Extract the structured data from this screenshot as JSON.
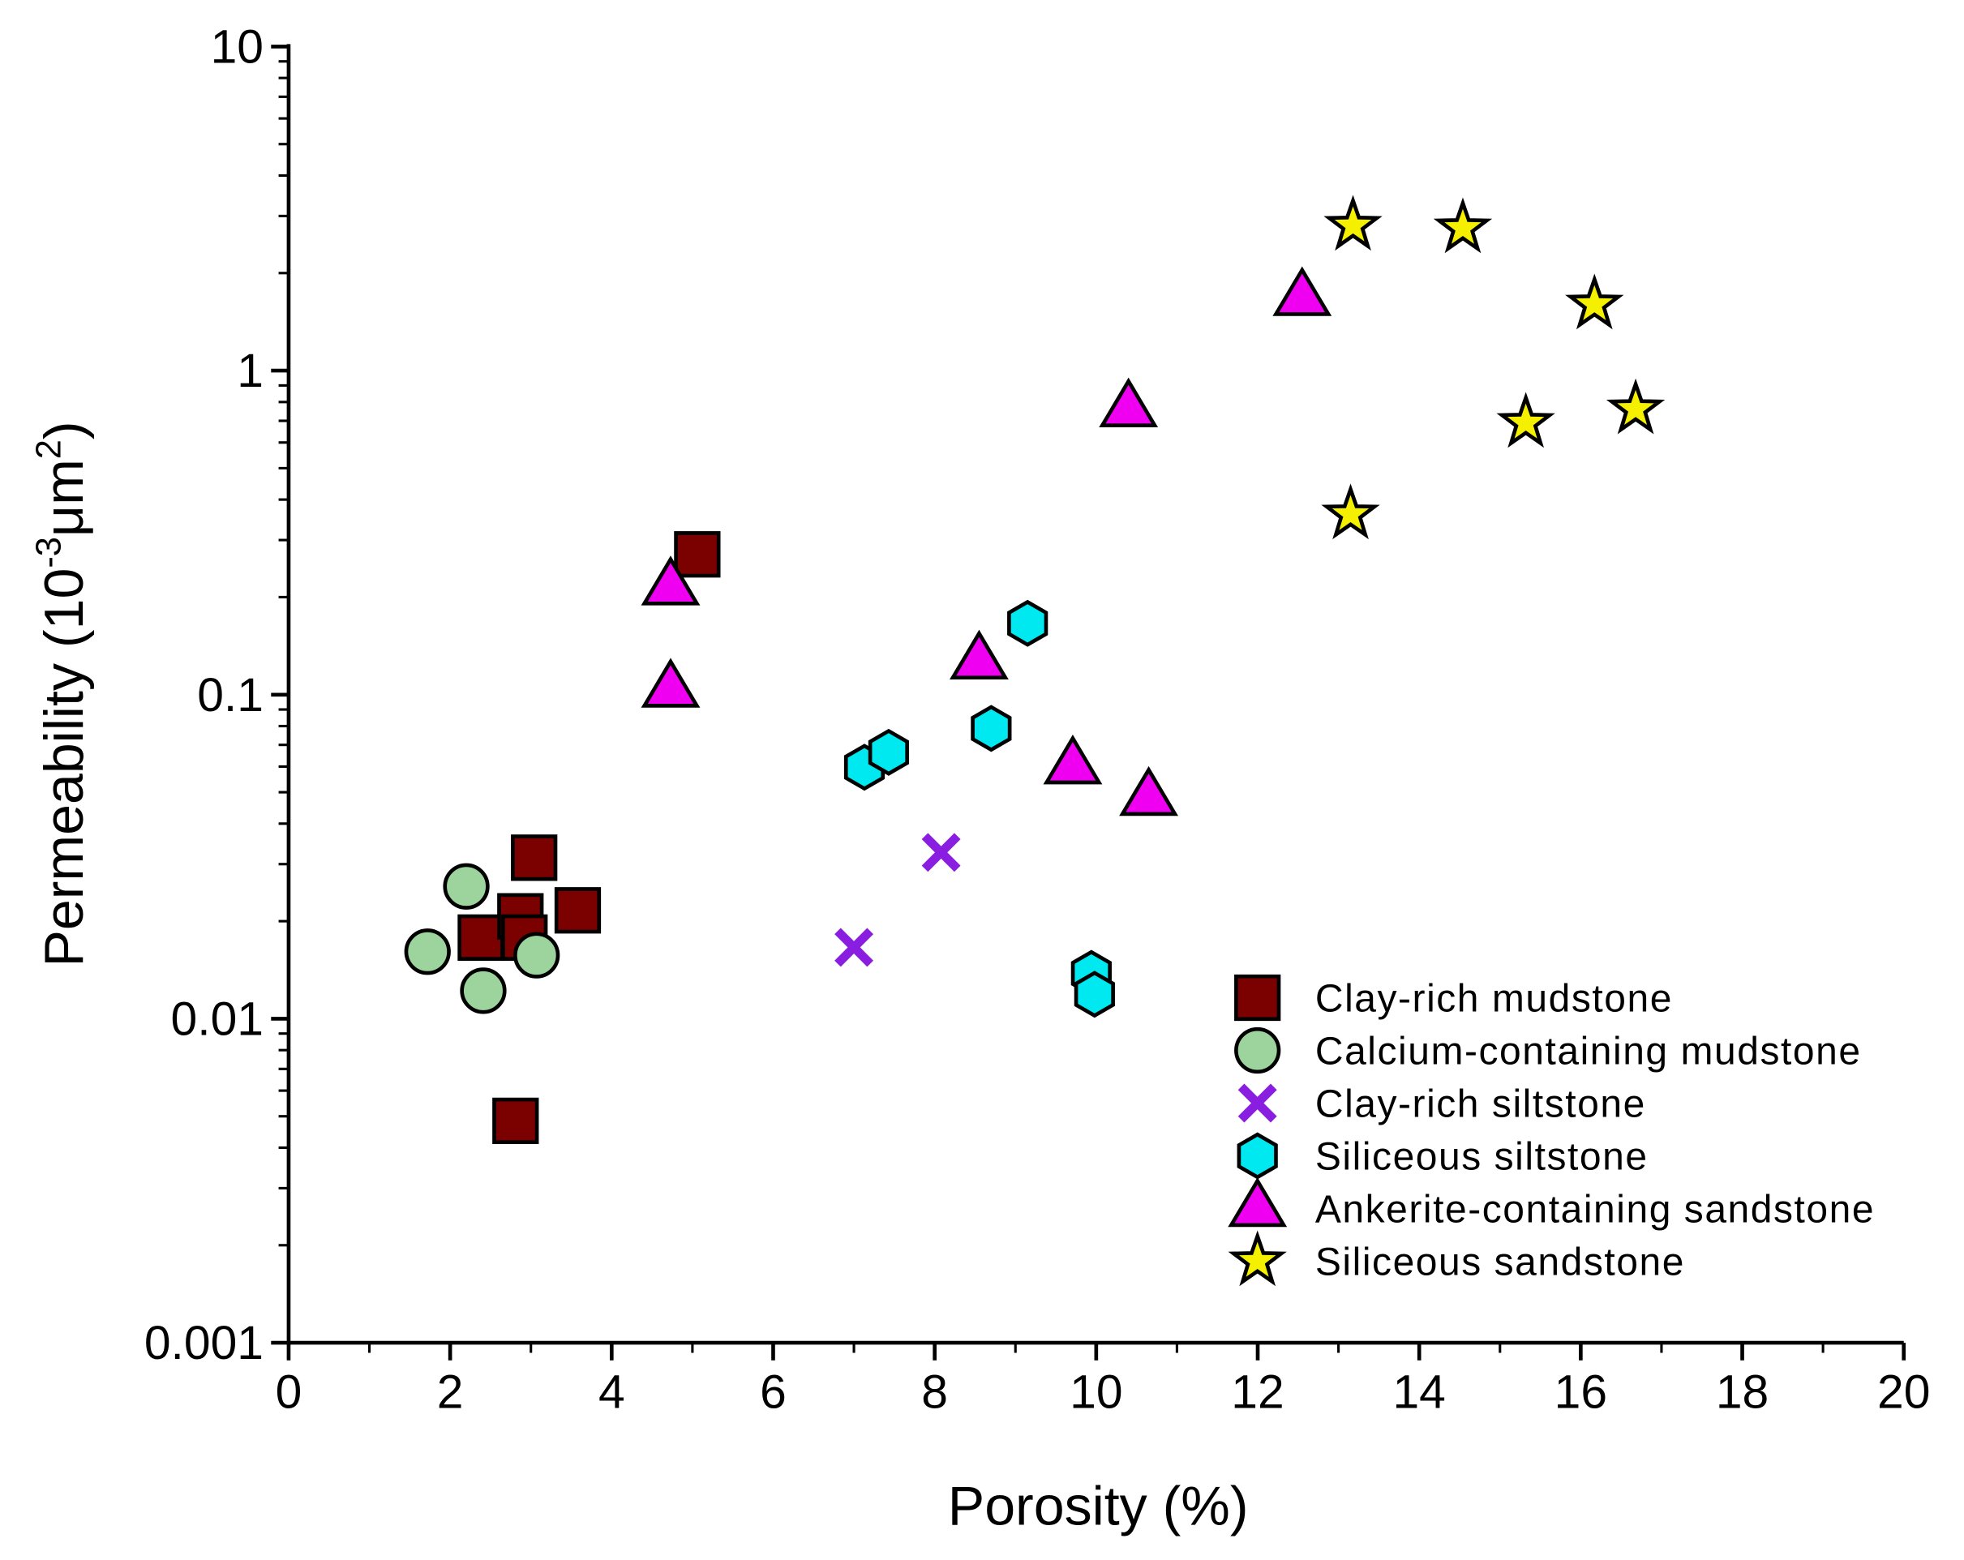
{
  "chart_data": {
    "type": "scatter",
    "title": "",
    "xlabel": "Porosity (%)",
    "ylabel_main": "Permeability (10",
    "ylabel_sup1": "-3",
    "ylabel_mid": "μm",
    "ylabel_sup2": "2",
    "ylabel_end": ")",
    "xlim": [
      0,
      20
    ],
    "ylim": [
      0.001,
      10
    ],
    "yscale": "log",
    "x_ticks": [
      "0",
      "2",
      "4",
      "6",
      "8",
      "10",
      "12",
      "14",
      "16",
      "18",
      "20"
    ],
    "y_ticks": [
      "0.001",
      "0.01",
      "0.1",
      "1",
      "10"
    ],
    "grid": false,
    "legend_position": "bottom-right",
    "series": [
      {
        "name": "Clay-rich mudstone",
        "marker": "square",
        "color": "#7b0000",
        "points": [
          [
            2.38,
            0.0178
          ],
          [
            2.87,
            0.0207
          ],
          [
            2.92,
            0.0178
          ],
          [
            3.04,
            0.0314
          ],
          [
            3.58,
            0.0216
          ],
          [
            2.81,
            0.00484
          ],
          [
            5.06,
            0.271
          ]
        ]
      },
      {
        "name": "Calcium-containing mudstone",
        "marker": "circle",
        "color": "#9dd49d",
        "points": [
          [
            1.72,
            0.0161
          ],
          [
            2.2,
            0.0256
          ],
          [
            2.41,
            0.0122
          ],
          [
            3.07,
            0.0157
          ]
        ]
      },
      {
        "name": "Clay-rich siltstone",
        "marker": "x",
        "color": "#8a1ee0",
        "points": [
          [
            7.0,
            0.0166
          ],
          [
            8.08,
            0.0326
          ]
        ]
      },
      {
        "name": "Siliceous siltstone",
        "marker": "hexagon",
        "color": "#00e8f0",
        "points": [
          [
            7.13,
            0.0597
          ],
          [
            7.43,
            0.0664
          ],
          [
            8.7,
            0.0787
          ],
          [
            9.15,
            0.166
          ],
          [
            9.94,
            0.0138
          ],
          [
            9.98,
            0.0119
          ]
        ]
      },
      {
        "name": "Ankerite-containing sandstone",
        "marker": "triangle",
        "color": "#f000f0",
        "points": [
          [
            4.73,
            0.215
          ],
          [
            4.73,
            0.104
          ],
          [
            8.55,
            0.127
          ],
          [
            9.71,
            0.0603
          ],
          [
            10.65,
            0.0482
          ],
          [
            10.4,
            0.762
          ],
          [
            12.55,
            1.68
          ]
        ]
      },
      {
        "name": "Siliceous sandstone",
        "marker": "star",
        "color": "#f5f000",
        "points": [
          [
            13.18,
            2.8
          ],
          [
            14.54,
            2.75
          ],
          [
            16.17,
            1.6
          ],
          [
            15.32,
            0.69
          ],
          [
            16.68,
            0.76
          ],
          [
            13.15,
            0.36
          ]
        ]
      }
    ]
  }
}
